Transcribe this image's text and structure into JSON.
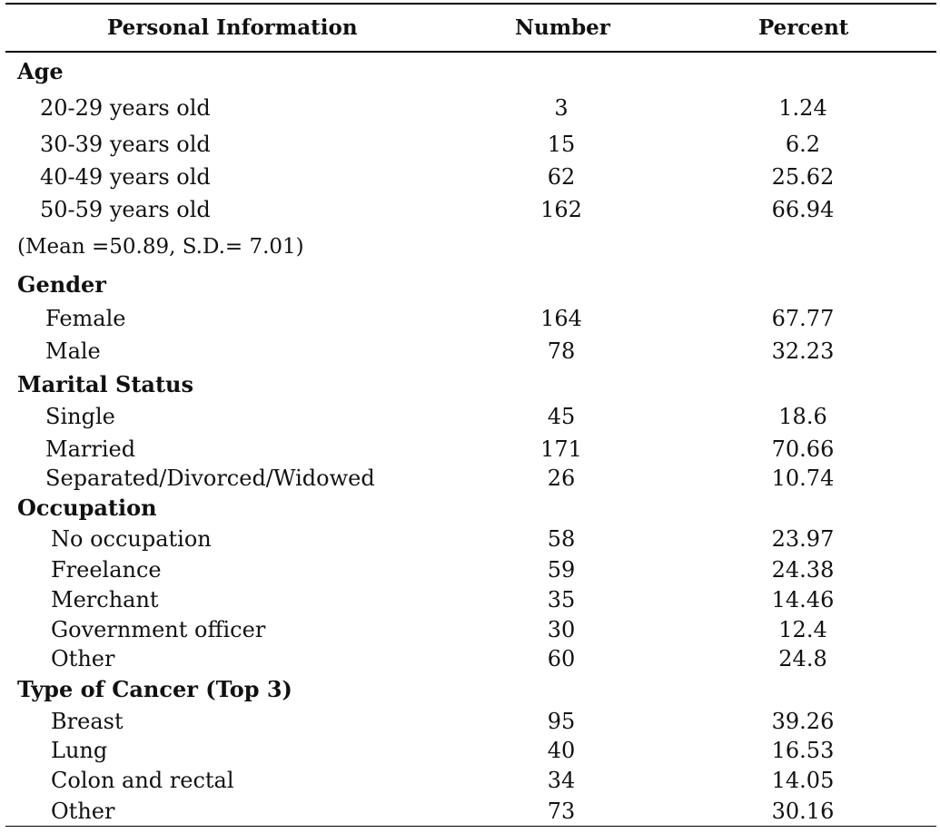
{
  "table": {
    "headers": {
      "label": "Personal Information",
      "number": "Number",
      "percent": "Percent"
    },
    "rows": [
      {
        "kind": "section",
        "label": "Age"
      },
      {
        "kind": "ind1",
        "label": "20-29 years old",
        "number": "3",
        "percent": "1.24"
      },
      {
        "kind": "ind1",
        "label": "30-39 years old",
        "number": "15",
        "percent": "6.2"
      },
      {
        "kind": "ind1",
        "label": "40-49 years old",
        "number": "62",
        "percent": "25.62"
      },
      {
        "kind": "ind1",
        "label": "50-59 years old",
        "number": "162",
        "percent": "66.94"
      },
      {
        "kind": "note",
        "label": "(Mean =50.89, S.D.= 7.01)"
      },
      {
        "kind": "section",
        "label": "Gender"
      },
      {
        "kind": "ind2",
        "label": "Female",
        "number": "164",
        "percent": "67.77"
      },
      {
        "kind": "ind2",
        "label": "Male",
        "number": "78",
        "percent": "32.23"
      },
      {
        "kind": "section",
        "label": "Marital Status"
      },
      {
        "kind": "ind2",
        "label": "Single",
        "number": "45",
        "percent": "18.6"
      },
      {
        "kind": "ind2",
        "label": "Married",
        "number": "171",
        "percent": "70.66"
      },
      {
        "kind": "ind2",
        "label": "Separated/Divorced/Widowed",
        "number": "26",
        "percent": "10.74"
      },
      {
        "kind": "section",
        "label": "Occupation"
      },
      {
        "kind": "ind3",
        "label": "No occupation",
        "number": "58",
        "percent": "23.97"
      },
      {
        "kind": "ind3",
        "label": "Freelance",
        "number": "59",
        "percent": "24.38"
      },
      {
        "kind": "ind3",
        "label": "Merchant",
        "number": "35",
        "percent": "14.46"
      },
      {
        "kind": "ind3",
        "label": "Government officer",
        "number": "30",
        "percent": "12.4"
      },
      {
        "kind": "ind3",
        "label": "Other",
        "number": "60",
        "percent": "24.8"
      },
      {
        "kind": "section",
        "label": "Type of Cancer (Top 3)"
      },
      {
        "kind": "ind3",
        "label": "Breast",
        "number": "95",
        "percent": "39.26"
      },
      {
        "kind": "ind3",
        "label": "Lung",
        "number": "40",
        "percent": "16.53"
      },
      {
        "kind": "ind3",
        "label": "Colon and rectal",
        "number": "34",
        "percent": "14.05"
      },
      {
        "kind": "ind3",
        "label": "Other",
        "number": "73",
        "percent": "30.16"
      }
    ]
  }
}
